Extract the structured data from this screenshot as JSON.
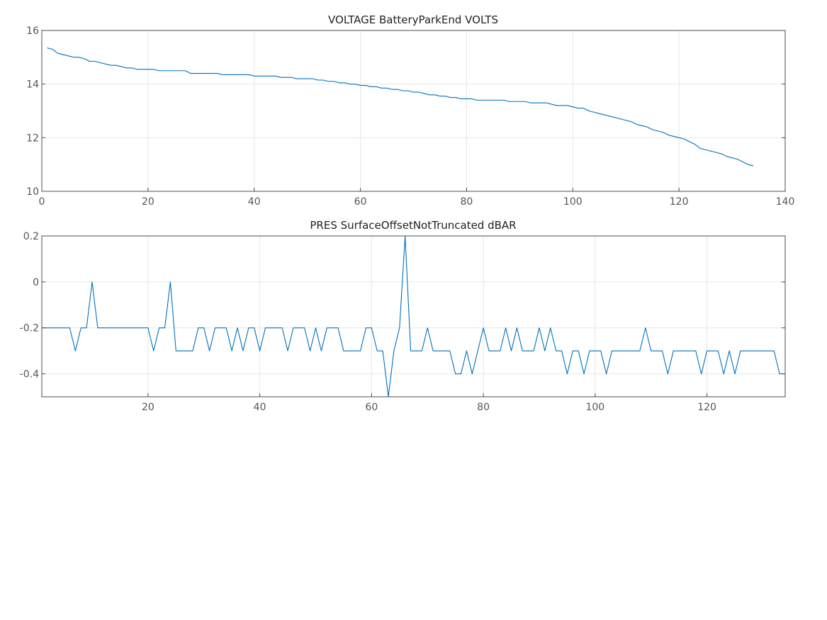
{
  "chart_data": [
    {
      "type": "line",
      "title": "VOLTAGE BatteryParkEnd VOLTS",
      "xlabel": "",
      "ylabel": "",
      "xlim": [
        0,
        140
      ],
      "ylim": [
        10,
        16
      ],
      "x_ticks": [
        0,
        20,
        40,
        60,
        80,
        100,
        120,
        140
      ],
      "x_tick_labels": [
        "0",
        "20",
        "40",
        "60",
        "80",
        "100",
        "120",
        "140"
      ],
      "y_ticks": [
        10,
        12,
        14,
        16
      ],
      "y_tick_labels": [
        "10",
        "12",
        "14",
        "16"
      ],
      "grid": true,
      "legend": "none",
      "color": "#0072bd",
      "series": [
        {
          "x": [
            1,
            2,
            3,
            4,
            5,
            6,
            7,
            8,
            9,
            10,
            11,
            12,
            13,
            14,
            15,
            16,
            17,
            18,
            19,
            20,
            21,
            22,
            23,
            24,
            25,
            26,
            27,
            28,
            29,
            30,
            31,
            32,
            33,
            34,
            35,
            36,
            37,
            38,
            39,
            40,
            41,
            42,
            43,
            44,
            45,
            46,
            47,
            48,
            49,
            50,
            51,
            52,
            53,
            54,
            55,
            56,
            57,
            58,
            59,
            60,
            61,
            62,
            63,
            64,
            65,
            66,
            67,
            68,
            69,
            70,
            71,
            72,
            73,
            74,
            75,
            76,
            77,
            78,
            79,
            80,
            81,
            82,
            83,
            84,
            85,
            86,
            87,
            88,
            89,
            90,
            91,
            92,
            93,
            94,
            95,
            96,
            97,
            98,
            99,
            100,
            101,
            102,
            103,
            104,
            105,
            106,
            107,
            108,
            109,
            110,
            111,
            112,
            113,
            114,
            115,
            116,
            117,
            118,
            119,
            120,
            121,
            122,
            123,
            124,
            125,
            126,
            127,
            128,
            129,
            130,
            131,
            132,
            133,
            134
          ],
          "values": [
            15.35,
            15.3,
            15.15,
            15.1,
            15.05,
            15.0,
            15.0,
            14.95,
            14.85,
            14.85,
            14.8,
            14.75,
            14.7,
            14.7,
            14.65,
            14.6,
            14.6,
            14.55,
            14.55,
            14.55,
            14.55,
            14.5,
            14.5,
            14.5,
            14.5,
            14.5,
            14.5,
            14.4,
            14.4,
            14.4,
            14.4,
            14.4,
            14.4,
            14.35,
            14.35,
            14.35,
            14.35,
            14.35,
            14.35,
            14.3,
            14.3,
            14.3,
            14.3,
            14.3,
            14.25,
            14.25,
            14.25,
            14.2,
            14.2,
            14.2,
            14.2,
            14.15,
            14.15,
            14.1,
            14.1,
            14.05,
            14.05,
            14.0,
            14.0,
            13.95,
            13.95,
            13.9,
            13.9,
            13.85,
            13.85,
            13.8,
            13.8,
            13.75,
            13.75,
            13.7,
            13.7,
            13.65,
            13.6,
            13.6,
            13.55,
            13.55,
            13.5,
            13.5,
            13.45,
            13.45,
            13.45,
            13.4,
            13.4,
            13.4,
            13.4,
            13.4,
            13.4,
            13.35,
            13.35,
            13.35,
            13.35,
            13.3,
            13.3,
            13.3,
            13.3,
            13.25,
            13.2,
            13.2,
            13.2,
            13.15,
            13.1,
            13.1,
            13.0,
            12.95,
            12.9,
            12.85,
            12.8,
            12.75,
            12.7,
            12.65,
            12.6,
            12.5,
            12.45,
            12.4,
            12.3,
            12.25,
            12.2,
            12.1,
            12.05,
            12.0,
            11.95,
            11.85,
            11.75,
            11.6,
            11.55,
            11.5,
            11.45,
            11.4,
            11.3,
            11.25,
            11.2,
            11.1,
            11.0,
            10.95
          ]
        }
      ]
    },
    {
      "type": "line",
      "title": "PRES SurfaceOffsetNotTruncated dBAR",
      "xlabel": "",
      "ylabel": "",
      "xlim": [
        1,
        134
      ],
      "ylim": [
        -0.5,
        0.2
      ],
      "x_ticks": [
        20,
        40,
        60,
        80,
        100,
        120
      ],
      "x_tick_labels": [
        "20",
        "40",
        "60",
        "80",
        "100",
        "120"
      ],
      "y_ticks": [
        -0.4,
        -0.2,
        0,
        0.2
      ],
      "y_tick_labels": [
        "-0.4",
        "-0.2",
        "0",
        "0.2"
      ],
      "grid": true,
      "legend": "none",
      "color": "#0072bd",
      "series": [
        {
          "x": [
            1,
            2,
            3,
            4,
            5,
            6,
            7,
            8,
            9,
            10,
            11,
            12,
            13,
            14,
            15,
            16,
            17,
            18,
            19,
            20,
            21,
            22,
            23,
            24,
            25,
            26,
            27,
            28,
            29,
            30,
            31,
            32,
            33,
            34,
            35,
            36,
            37,
            38,
            39,
            40,
            41,
            42,
            43,
            44,
            45,
            46,
            47,
            48,
            49,
            50,
            51,
            52,
            53,
            54,
            55,
            56,
            57,
            58,
            59,
            60,
            61,
            62,
            63,
            64,
            65,
            66,
            67,
            68,
            69,
            70,
            71,
            72,
            73,
            74,
            75,
            76,
            77,
            78,
            79,
            80,
            81,
            82,
            83,
            84,
            85,
            86,
            87,
            88,
            89,
            90,
            91,
            92,
            93,
            94,
            95,
            96,
            97,
            98,
            99,
            100,
            101,
            102,
            103,
            104,
            105,
            106,
            107,
            108,
            109,
            110,
            111,
            112,
            113,
            114,
            115,
            116,
            117,
            118,
            119,
            120,
            121,
            122,
            123,
            124,
            125,
            126,
            127,
            128,
            129,
            130,
            131,
            132,
            133,
            134
          ],
          "values": [
            -0.2,
            -0.2,
            -0.2,
            -0.2,
            -0.2,
            -0.2,
            -0.3,
            -0.2,
            -0.2,
            0,
            -0.2,
            -0.2,
            -0.2,
            -0.2,
            -0.2,
            -0.2,
            -0.2,
            -0.2,
            -0.2,
            -0.2,
            -0.3,
            -0.2,
            -0.2,
            0,
            -0.3,
            -0.3,
            -0.3,
            -0.3,
            -0.2,
            -0.2,
            -0.3,
            -0.2,
            -0.2,
            -0.2,
            -0.3,
            -0.2,
            -0.3,
            -0.2,
            -0.2,
            -0.3,
            -0.2,
            -0.2,
            -0.2,
            -0.2,
            -0.3,
            -0.2,
            -0.2,
            -0.2,
            -0.3,
            -0.2,
            -0.3,
            -0.2,
            -0.2,
            -0.2,
            -0.3,
            -0.3,
            -0.3,
            -0.3,
            -0.2,
            -0.2,
            -0.3,
            -0.3,
            -0.5,
            -0.3,
            -0.2,
            0.2,
            -0.3,
            -0.3,
            -0.3,
            -0.2,
            -0.3,
            -0.3,
            -0.3,
            -0.3,
            -0.4,
            -0.4,
            -0.3,
            -0.4,
            -0.3,
            -0.2,
            -0.3,
            -0.3,
            -0.3,
            -0.2,
            -0.3,
            -0.2,
            -0.3,
            -0.3,
            -0.3,
            -0.2,
            -0.3,
            -0.2,
            -0.3,
            -0.3,
            -0.4,
            -0.3,
            -0.3,
            -0.4,
            -0.3,
            -0.3,
            -0.3,
            -0.4,
            -0.3,
            -0.3,
            -0.3,
            -0.3,
            -0.3,
            -0.3,
            -0.2,
            -0.3,
            -0.3,
            -0.3,
            -0.4,
            -0.3,
            -0.3,
            -0.3,
            -0.3,
            -0.3,
            -0.4,
            -0.3,
            -0.3,
            -0.3,
            -0.4,
            -0.3,
            -0.4,
            -0.3,
            -0.3,
            -0.3,
            -0.3,
            -0.3,
            -0.3,
            -0.3,
            -0.4,
            -0.4
          ]
        }
      ]
    }
  ]
}
